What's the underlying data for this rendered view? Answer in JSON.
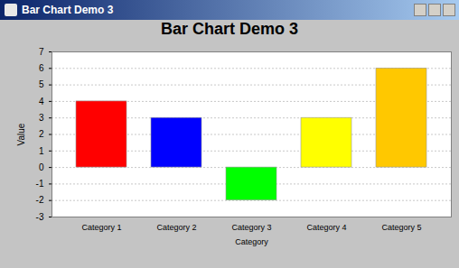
{
  "window_title": "Bar Chart Demo 3",
  "chart_data": {
    "type": "bar",
    "title": "Bar Chart Demo 3",
    "x_label": "Category",
    "y_label": "Value",
    "categories": [
      "Category 1",
      "Category 2",
      "Category 3",
      "Category 4",
      "Category 5"
    ],
    "values": [
      4,
      3,
      -2,
      3,
      6
    ],
    "colors": [
      "#ff0000",
      "#0000ff",
      "#00ff00",
      "#ffff00",
      "#ffc800"
    ],
    "ylim": [
      -3,
      7
    ],
    "yticks": [
      -3,
      -2,
      -1,
      0,
      1,
      2,
      3,
      4,
      5,
      6,
      7
    ],
    "grid": true
  }
}
